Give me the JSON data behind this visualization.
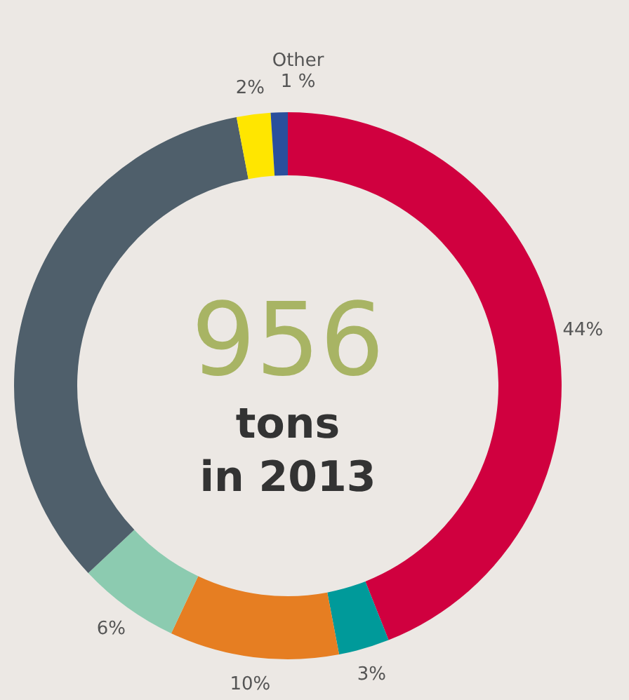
{
  "chart_data": {
    "type": "donut",
    "categories": [
      null,
      null,
      null,
      null,
      null,
      null,
      "Other"
    ],
    "values": [
      44,
      3,
      10,
      6,
      34,
      2,
      1
    ],
    "colors": [
      "#d0003f",
      "#009a9a",
      "#e67e22",
      "#8ccbb0",
      "#4f5f6b",
      "#ffe600",
      "#2a4f9c"
    ],
    "value_labels": [
      "44%",
      "3%",
      "10%",
      "6%",
      null,
      "2%",
      "1 %"
    ],
    "annotations": [
      "956",
      "tons",
      "in 2013"
    ]
  }
}
